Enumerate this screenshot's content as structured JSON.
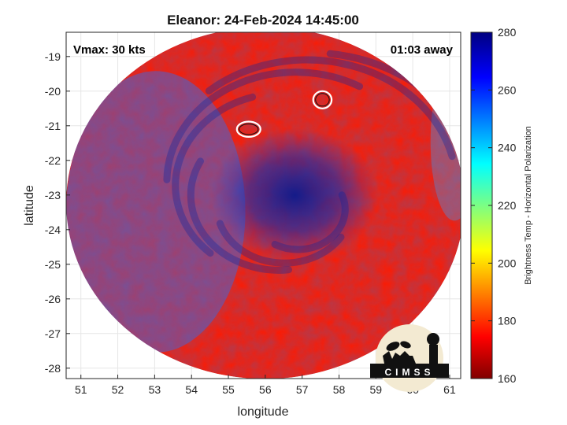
{
  "chart_data": {
    "type": "heatmap",
    "title": "Eleanor: 24-Feb-2024 14:45:00",
    "xlabel": "longitude",
    "ylabel": "latitude",
    "xlim": [
      50.6,
      61.3
    ],
    "ylim": [
      -28.3,
      -18.3
    ],
    "x_ticks": [
      "51",
      "52",
      "53",
      "54",
      "55",
      "56",
      "57",
      "58",
      "59",
      "60",
      "61"
    ],
    "y_ticks": [
      "-19",
      "-20",
      "-21",
      "-22",
      "-23",
      "-24",
      "-25",
      "-26",
      "-27",
      "-28"
    ],
    "grid": true,
    "colorbar": {
      "label": "Brightness Temp - Horizontal Polarization",
      "range": [
        160,
        280
      ],
      "ticks": [
        "160",
        "180",
        "200",
        "220",
        "240",
        "260",
        "280"
      ],
      "colormap": "jet"
    },
    "annotations": {
      "vmax": "Vmax: 30 kts",
      "time_offset": "01:03 away"
    },
    "swath": {
      "center_lon": 56.0,
      "center_lat": -23.23,
      "radius_lon": 5.4,
      "radius_lat": 5.08,
      "background_temp": 262
    },
    "cold_core": {
      "center_lon": 56.8,
      "center_lat": -23.0,
      "temp": 272
    },
    "contours": [
      {
        "name": "contour-west",
        "center_lon": 55.55,
        "center_lat": -21.1,
        "rx": 0.32,
        "ry": 0.22
      },
      {
        "name": "contour-east",
        "center_lon": 57.55,
        "center_lat": -20.25,
        "rx": 0.25,
        "ry": 0.25
      }
    ],
    "logo": "CIMSS",
    "colors": {
      "swath_base": "#1a4ee6",
      "swath_dark": "#0b1d9c",
      "contour": "#ffffff"
    }
  }
}
